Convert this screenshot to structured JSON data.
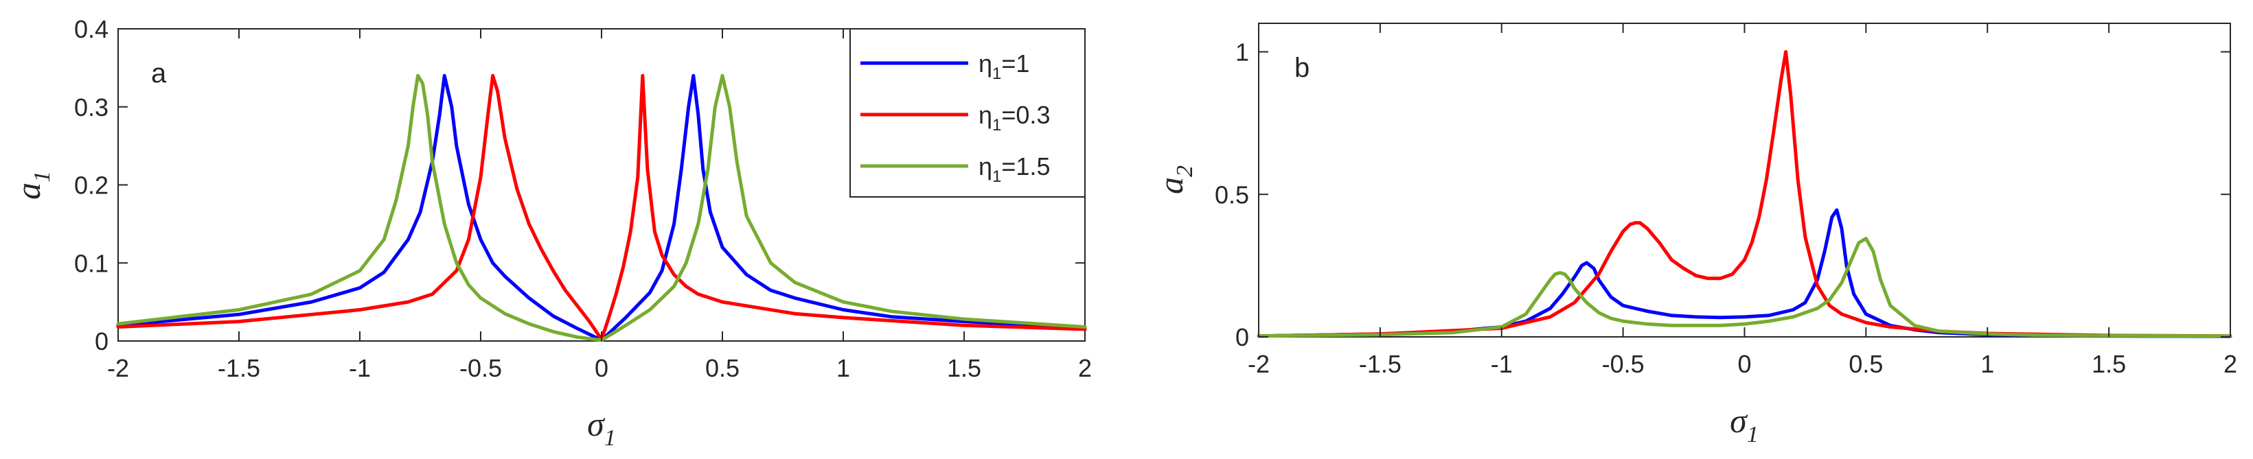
{
  "chart_data": [
    {
      "type": "line",
      "panel_label": "a",
      "xlabel": {
        "symbol": "σ",
        "sub": "1"
      },
      "ylabel": {
        "symbol": "a",
        "sub": "1"
      },
      "xlim": [
        -2,
        2
      ],
      "ylim": [
        0,
        0.4
      ],
      "xticks": [
        -2,
        -1.5,
        -1,
        -0.5,
        0,
        0.5,
        1,
        1.5,
        2
      ],
      "xtick_labels": [
        "-2",
        "-1.5",
        "-1",
        "-0.5",
        "0",
        "0.5",
        "1",
        "1.5",
        "2"
      ],
      "yticks": [
        0,
        0.1,
        0.2,
        0.3,
        0.4
      ],
      "ytick_labels": [
        "0",
        "0.1",
        "0.2",
        "0.3",
        "0.4"
      ],
      "grid": false,
      "legend_position": "top-right",
      "series": [
        {
          "name": {
            "symbol": "η",
            "sub": "1",
            "rest": "=1"
          },
          "color": "#0000ff",
          "x": [
            -2,
            -1.5,
            -1.2,
            -1,
            -0.9,
            -0.8,
            -0.75,
            -0.7,
            -0.67,
            -0.65,
            -0.62,
            -0.6,
            -0.55,
            -0.5,
            -0.45,
            -0.4,
            -0.3,
            -0.2,
            -0.1,
            0,
            0.1,
            0.2,
            0.25,
            0.3,
            0.33,
            0.36,
            0.38,
            0.4,
            0.42,
            0.45,
            0.5,
            0.6,
            0.7,
            0.8,
            1,
            1.2,
            1.5,
            2
          ],
          "y": [
            0.02,
            0.034,
            0.05,
            0.068,
            0.088,
            0.13,
            0.165,
            0.23,
            0.29,
            0.34,
            0.3,
            0.25,
            0.175,
            0.13,
            0.1,
            0.083,
            0.055,
            0.032,
            0.016,
            0.001,
            0.03,
            0.062,
            0.09,
            0.15,
            0.22,
            0.3,
            0.34,
            0.29,
            0.22,
            0.165,
            0.12,
            0.085,
            0.065,
            0.055,
            0.04,
            0.031,
            0.025,
            0.017
          ]
        },
        {
          "name": {
            "symbol": "η",
            "sub": "1",
            "rest": "=0.3"
          },
          "color": "#ff0000",
          "x": [
            -2,
            -1.5,
            -1,
            -0.8,
            -0.7,
            -0.6,
            -0.55,
            -0.5,
            -0.47,
            -0.45,
            -0.43,
            -0.4,
            -0.35,
            -0.3,
            -0.25,
            -0.2,
            -0.15,
            -0.1,
            -0.05,
            0,
            0.03,
            0.06,
            0.09,
            0.12,
            0.15,
            0.17,
            0.19,
            0.22,
            0.25,
            0.3,
            0.35,
            0.4,
            0.5,
            0.6,
            0.8,
            1,
            1.5,
            2
          ],
          "y": [
            0.018,
            0.025,
            0.04,
            0.05,
            0.06,
            0.09,
            0.13,
            0.21,
            0.29,
            0.34,
            0.32,
            0.26,
            0.195,
            0.15,
            0.118,
            0.09,
            0.065,
            0.045,
            0.025,
            0.002,
            0.03,
            0.06,
            0.095,
            0.14,
            0.21,
            0.34,
            0.22,
            0.14,
            0.11,
            0.085,
            0.07,
            0.06,
            0.05,
            0.045,
            0.035,
            0.03,
            0.02,
            0.015
          ]
        },
        {
          "name": {
            "symbol": "η",
            "sub": "1",
            "rest": "=1.5"
          },
          "color": "#77ac30",
          "x": [
            -2,
            -1.5,
            -1.2,
            -1,
            -0.9,
            -0.85,
            -0.8,
            -0.78,
            -0.76,
            -0.74,
            -0.72,
            -0.7,
            -0.65,
            -0.6,
            -0.55,
            -0.5,
            -0.4,
            -0.3,
            -0.2,
            -0.1,
            0,
            0.1,
            0.2,
            0.3,
            0.35,
            0.4,
            0.44,
            0.47,
            0.5,
            0.53,
            0.56,
            0.6,
            0.7,
            0.8,
            1,
            1.2,
            1.5,
            2
          ],
          "y": [
            0.022,
            0.04,
            0.06,
            0.09,
            0.13,
            0.18,
            0.25,
            0.3,
            0.34,
            0.33,
            0.29,
            0.23,
            0.15,
            0.1,
            0.072,
            0.055,
            0.035,
            0.022,
            0.012,
            0.005,
            0.001,
            0.02,
            0.04,
            0.07,
            0.1,
            0.15,
            0.22,
            0.3,
            0.34,
            0.3,
            0.23,
            0.16,
            0.1,
            0.075,
            0.05,
            0.038,
            0.028,
            0.018
          ]
        }
      ]
    },
    {
      "type": "line",
      "panel_label": "b",
      "xlabel": {
        "symbol": "σ",
        "sub": "1"
      },
      "ylabel": {
        "symbol": "a",
        "sub": "2"
      },
      "xlim": [
        -2,
        2
      ],
      "ylim": [
        0,
        1.1
      ],
      "xticks": [
        -2,
        -1.5,
        -1,
        -0.5,
        0,
        0.5,
        1,
        1.5,
        2
      ],
      "xtick_labels": [
        "-2",
        "-1.5",
        "-1",
        "-0.5",
        "0",
        "0.5",
        "1",
        "1.5",
        "2"
      ],
      "yticks": [
        0,
        0.5,
        1
      ],
      "ytick_labels": [
        "0",
        "0.5",
        "1"
      ],
      "grid": false,
      "series": [
        {
          "color": "#0000ff",
          "x": [
            -2,
            -1.5,
            -1.2,
            -1,
            -0.9,
            -0.8,
            -0.75,
            -0.7,
            -0.67,
            -0.65,
            -0.62,
            -0.6,
            -0.55,
            -0.5,
            -0.45,
            -0.4,
            -0.3,
            -0.2,
            -0.1,
            0,
            0.1,
            0.2,
            0.25,
            0.3,
            0.33,
            0.36,
            0.38,
            0.4,
            0.42,
            0.45,
            0.5,
            0.6,
            0.7,
            0.8,
            1,
            1.2,
            1.5,
            2
          ],
          "y": [
            0.003,
            0.01,
            0.02,
            0.035,
            0.055,
            0.1,
            0.15,
            0.21,
            0.25,
            0.26,
            0.24,
            0.2,
            0.14,
            0.11,
            0.1,
            0.09,
            0.075,
            0.07,
            0.068,
            0.07,
            0.075,
            0.095,
            0.12,
            0.2,
            0.3,
            0.42,
            0.445,
            0.38,
            0.25,
            0.15,
            0.08,
            0.04,
            0.025,
            0.015,
            0.008,
            0.005,
            0.003,
            0.002
          ]
        },
        {
          "color": "#ff0000",
          "x": [
            -2,
            -1.5,
            -1,
            -0.8,
            -0.7,
            -0.6,
            -0.55,
            -0.5,
            -0.47,
            -0.45,
            -0.43,
            -0.4,
            -0.35,
            -0.3,
            -0.25,
            -0.2,
            -0.15,
            -0.1,
            -0.05,
            0,
            0.03,
            0.06,
            0.09,
            0.12,
            0.15,
            0.17,
            0.19,
            0.22,
            0.25,
            0.3,
            0.35,
            0.4,
            0.5,
            0.6,
            0.8,
            1,
            1.5,
            2
          ],
          "y": [
            0.003,
            0.01,
            0.03,
            0.07,
            0.12,
            0.22,
            0.3,
            0.37,
            0.395,
            0.4,
            0.4,
            0.38,
            0.33,
            0.27,
            0.24,
            0.215,
            0.205,
            0.205,
            0.22,
            0.27,
            0.33,
            0.42,
            0.55,
            0.72,
            0.9,
            1.0,
            0.85,
            0.55,
            0.35,
            0.18,
            0.11,
            0.08,
            0.05,
            0.035,
            0.02,
            0.012,
            0.005,
            0.003
          ]
        },
        {
          "color": "#77ac30",
          "x": [
            -2,
            -1.5,
            -1.2,
            -1,
            -0.9,
            -0.85,
            -0.8,
            -0.78,
            -0.76,
            -0.74,
            -0.72,
            -0.7,
            -0.65,
            -0.6,
            -0.55,
            -0.5,
            -0.4,
            -0.3,
            -0.2,
            -0.1,
            0,
            0.1,
            0.2,
            0.3,
            0.35,
            0.4,
            0.44,
            0.47,
            0.5,
            0.53,
            0.56,
            0.6,
            0.7,
            0.8,
            1,
            1.2,
            1.5,
            2
          ],
          "y": [
            0.003,
            0.008,
            0.015,
            0.035,
            0.08,
            0.14,
            0.2,
            0.22,
            0.225,
            0.22,
            0.2,
            0.17,
            0.12,
            0.085,
            0.065,
            0.055,
            0.045,
            0.04,
            0.04,
            0.04,
            0.045,
            0.055,
            0.07,
            0.1,
            0.13,
            0.19,
            0.27,
            0.33,
            0.345,
            0.3,
            0.2,
            0.11,
            0.04,
            0.02,
            0.01,
            0.006,
            0.004,
            0.003
          ]
        }
      ]
    }
  ]
}
